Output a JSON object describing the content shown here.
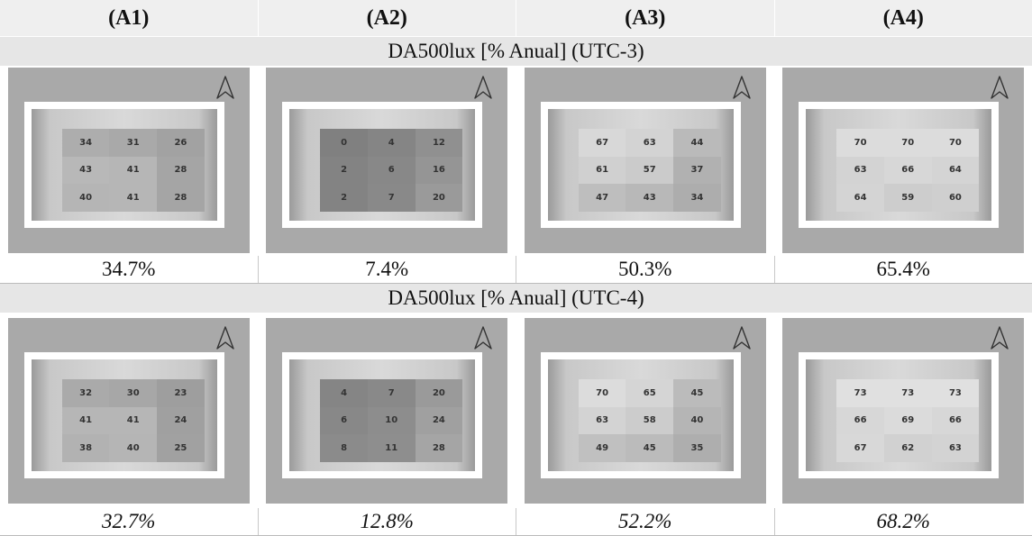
{
  "headers": [
    "(A1)",
    "(A2)",
    "(A3)",
    "(A4)"
  ],
  "bands": [
    "DA500lux [% Anual] (UTC-3)",
    "DA500lux [% Anual] (UTC-4)"
  ],
  "rows": [
    {
      "cells": [
        {
          "grid": [
            34,
            31,
            26,
            43,
            41,
            28,
            40,
            41,
            28
          ]
        },
        {
          "grid": [
            0,
            4,
            12,
            2,
            6,
            16,
            2,
            7,
            20
          ]
        },
        {
          "grid": [
            67,
            63,
            44,
            61,
            57,
            37,
            47,
            43,
            34
          ]
        },
        {
          "grid": [
            70,
            70,
            70,
            63,
            66,
            64,
            64,
            59,
            60
          ]
        }
      ],
      "percents": [
        "34.7%",
        "7.4%",
        "50.3%",
        "65.4%"
      ]
    },
    {
      "cells": [
        {
          "grid": [
            32,
            30,
            23,
            41,
            41,
            24,
            38,
            40,
            25
          ]
        },
        {
          "grid": [
            4,
            7,
            20,
            6,
            10,
            24,
            8,
            11,
            28
          ]
        },
        {
          "grid": [
            70,
            65,
            45,
            63,
            58,
            40,
            49,
            45,
            35
          ]
        },
        {
          "grid": [
            73,
            73,
            73,
            66,
            69,
            66,
            67,
            62,
            63
          ]
        }
      ],
      "percents": [
        "32.7%",
        "12.8%",
        "52.2%",
        "68.2%"
      ]
    }
  ]
}
